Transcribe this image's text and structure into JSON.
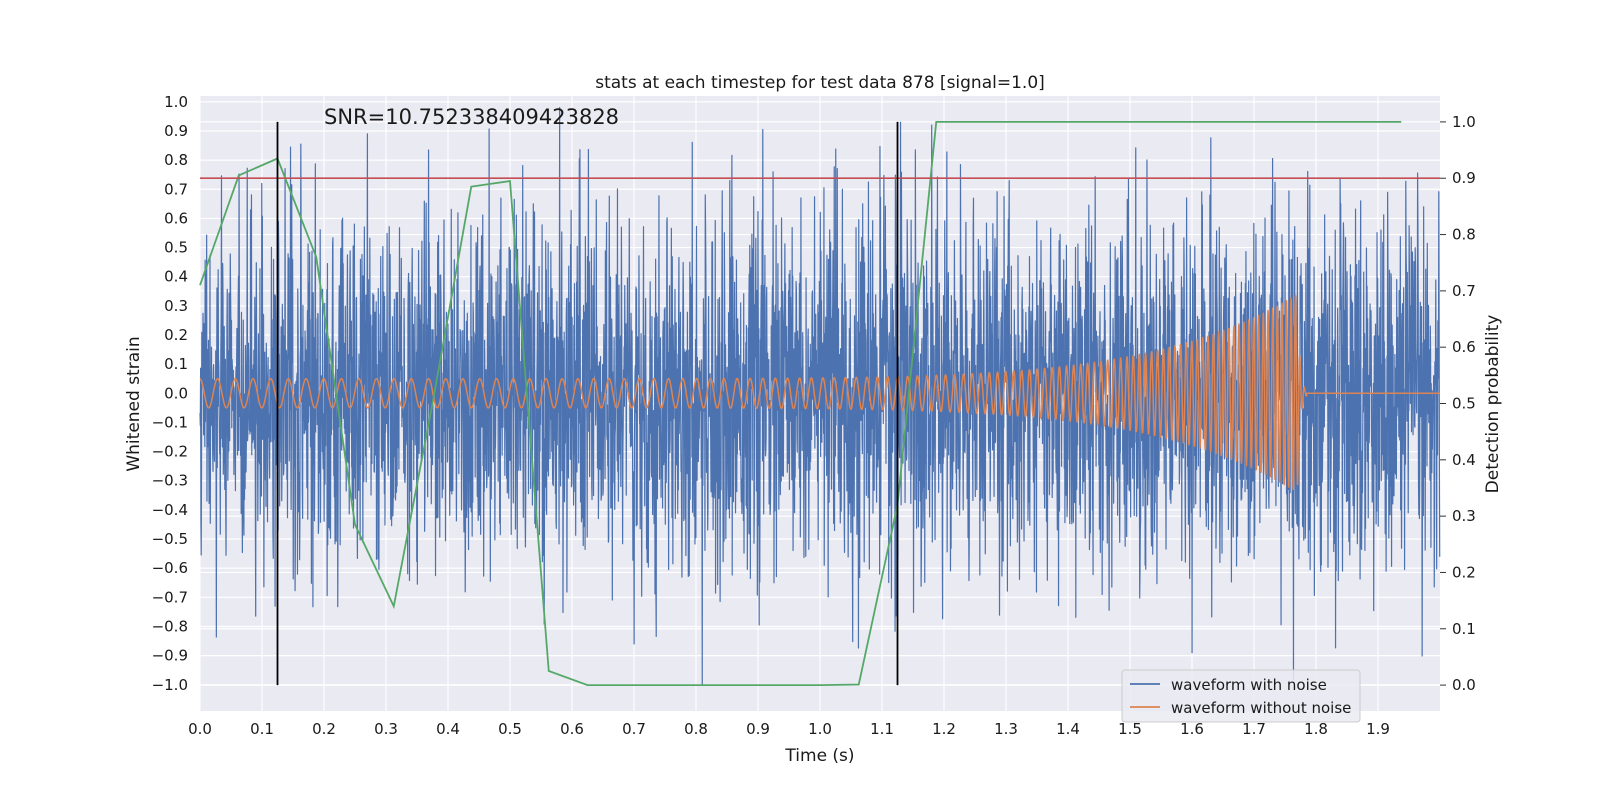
{
  "chart_data": {
    "type": "line",
    "title": "stats at each timestep for test data 878 [signal=1.0]",
    "xlabel": "Time (s)",
    "ylabel": "Whitened strain",
    "y2label": "Detection probability",
    "xlim": [
      0.0,
      2.0
    ],
    "ylim": [
      -1.09,
      1.02
    ],
    "y2lim": [
      -0.046,
      1.046
    ],
    "xticks": [
      0.0,
      0.1,
      0.2,
      0.3,
      0.4,
      0.5,
      0.6,
      0.7,
      0.8,
      0.9,
      1.0,
      1.1,
      1.2,
      1.3,
      1.4,
      1.5,
      1.6,
      1.7,
      1.8,
      1.9
    ],
    "xtick_labels": [
      "0.0",
      "0.1",
      "0.2",
      "0.3",
      "0.4",
      "0.5",
      "0.6",
      "0.7",
      "0.8",
      "0.9",
      "1.0",
      "1.1",
      "1.2",
      "1.3",
      "1.4",
      "1.5",
      "1.6",
      "1.7",
      "1.8",
      "1.9"
    ],
    "yticks": [
      1.0,
      0.9,
      0.8,
      0.7,
      0.6,
      0.5,
      0.4,
      0.3,
      0.2,
      0.1,
      0.0,
      -0.1,
      -0.2,
      -0.3,
      -0.4,
      -0.5,
      -0.6,
      -0.7,
      -0.8,
      -0.9,
      -1.0
    ],
    "ytick_labels": [
      "1.0",
      "0.9",
      "0.8",
      "0.7",
      "0.6",
      "0.5",
      "0.4",
      "0.3",
      "0.2",
      "0.1",
      "0.0",
      "−0.1",
      "−0.2",
      "−0.3",
      "−0.4",
      "−0.5",
      "−0.6",
      "−0.7",
      "−0.8",
      "−0.9",
      "−1.0"
    ],
    "y2ticks": [
      1.0,
      0.9,
      0.8,
      0.7,
      0.6,
      0.5,
      0.4,
      0.3,
      0.2,
      0.1,
      0.0
    ],
    "y2tick_labels": [
      "1.0",
      "0.9",
      "0.8",
      "0.7",
      "0.6",
      "0.5",
      "0.4",
      "0.3",
      "0.2",
      "0.1",
      "0.0"
    ],
    "grid": true,
    "legend_placement": "lower-right",
    "annotation": "SNR=10.752338409423828",
    "series": [
      {
        "name": "waveform with noise",
        "color": "#4c72b0",
        "axis": "left",
        "kind": "gaussian_noise",
        "duration": 2.0,
        "sample_rate": 2048,
        "std": 0.3,
        "notable_peaks": [
          [
            0.27,
            0.89
          ],
          [
            0.81,
            0.82
          ],
          [
            1.13,
            0.93
          ],
          [
            1.18,
            0.92
          ],
          [
            0.81,
            -1.0
          ],
          [
            1.6,
            -0.89
          ],
          [
            0.7,
            -0.86
          ]
        ]
      },
      {
        "name": "waveform without noise",
        "color": "#dd8452",
        "axis": "left",
        "kind": "chirp",
        "t_merge": 1.77,
        "amplitude_start": 0.05,
        "amplitude_peak": 0.34,
        "frequency_start": 35,
        "frequency_end": 140
      },
      {
        "color": "#55a868",
        "axis": "right",
        "x": [
          0.0,
          0.0625,
          0.125,
          0.1875,
          0.25,
          0.3125,
          0.375,
          0.4375,
          0.5,
          0.5625,
          0.625,
          0.6875,
          0.75,
          0.8125,
          0.875,
          0.9375,
          1.0,
          1.0625,
          1.125,
          1.1875,
          1.25,
          1.3125,
          1.375,
          1.4375,
          1.5,
          1.5625,
          1.625,
          1.6875,
          1.75,
          1.8125,
          1.875,
          1.9375
        ],
        "values": [
          0.71,
          0.905,
          0.935,
          0.76,
          0.285,
          0.14,
          0.5,
          0.885,
          0.895,
          0.025,
          0.0,
          0.0,
          0.0,
          0.0,
          0.0,
          0.0,
          0.0,
          0.001,
          0.32,
          1.0,
          1.0,
          1.0,
          1.0,
          1.0,
          1.0,
          1.0,
          1.0,
          1.0,
          1.0,
          1.0,
          1.0,
          1.0
        ]
      }
    ],
    "threshold": {
      "value": 0.9,
      "axis": "right",
      "color": "#c44e52"
    },
    "vlines": {
      "x": [
        0.125,
        1.125
      ],
      "ymin": 0.0,
      "ymax": 1.0,
      "axis": "right",
      "color": "#000000"
    },
    "colors": {
      "axes_bg": "#eaeaf2",
      "grid": "#ffffff",
      "text": "#1a1a1a"
    }
  }
}
